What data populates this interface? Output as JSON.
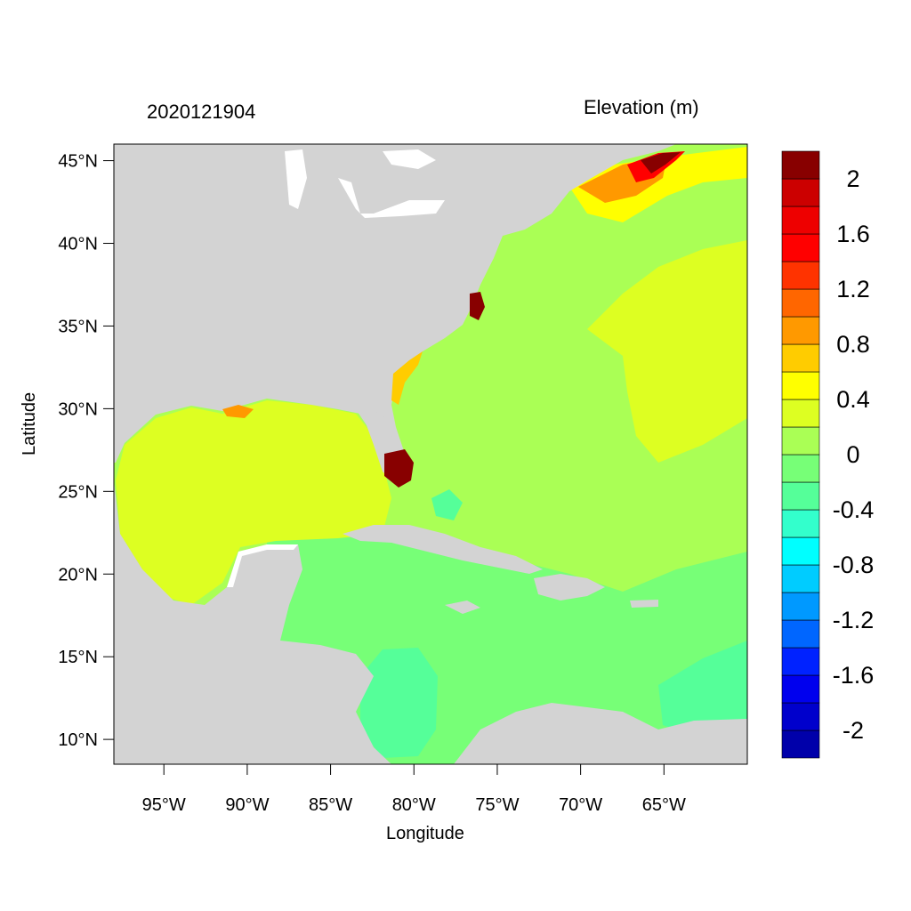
{
  "title_left": "2020121904",
  "title_right": "Elevation (m)",
  "chart_data": {
    "type": "heatmap",
    "title": "2020121904",
    "subtitle": "Elevation (m)",
    "xlabel": "Longitude",
    "ylabel": "Latitude",
    "x_ticks": [
      {
        "value": -95,
        "label": "95°W"
      },
      {
        "value": -90,
        "label": "90°W"
      },
      {
        "value": -85,
        "label": "85°W"
      },
      {
        "value": -80,
        "label": "80°W"
      },
      {
        "value": -75,
        "label": "75°W"
      },
      {
        "value": -70,
        "label": "70°W"
      },
      {
        "value": -65,
        "label": "65°W"
      }
    ],
    "y_ticks": [
      {
        "value": 45,
        "label": "45°N"
      },
      {
        "value": 40,
        "label": "40°N"
      },
      {
        "value": 35,
        "label": "35°N"
      },
      {
        "value": 30,
        "label": "30°N"
      },
      {
        "value": 25,
        "label": "25°N"
      },
      {
        "value": 20,
        "label": "20°N"
      },
      {
        "value": 15,
        "label": "15°N"
      },
      {
        "value": 10,
        "label": "10°N"
      }
    ],
    "xlim": [
      -98,
      -60
    ],
    "ylim": [
      8.5,
      46
    ],
    "colorbar": {
      "colors": [
        "#0000aa",
        "#0000cc",
        "#0000ee",
        "#0022ff",
        "#0066ff",
        "#0099ff",
        "#00ccff",
        "#00ffff",
        "#33ffcc",
        "#55ff99",
        "#77ff77",
        "#aaff55",
        "#ddff22",
        "#ffff00",
        "#ffcc00",
        "#ff9900",
        "#ff6600",
        "#ff3300",
        "#ff0000",
        "#ee0000",
        "#cc0000",
        "#880000"
      ],
      "tick_labels": [
        {
          "value": -2,
          "label": "-2"
        },
        {
          "value": -1.6,
          "label": "-1.6"
        },
        {
          "value": -1.2,
          "label": "-1.2"
        },
        {
          "value": -0.8,
          "label": "-0.8"
        },
        {
          "value": -0.4,
          "label": "-0.4"
        },
        {
          "value": 0,
          "label": "0"
        },
        {
          "value": 0.4,
          "label": "0.4"
        },
        {
          "value": 0.8,
          "label": "0.8"
        },
        {
          "value": 1.2,
          "label": "1.2"
        },
        {
          "value": 1.6,
          "label": "1.6"
        },
        {
          "value": 2,
          "label": "2"
        }
      ]
    },
    "colors": {
      "land": "#d3d3d3",
      "atlantic": "#aaff55",
      "gulf": "#ddff22",
      "caribbean": "#77ff77",
      "caribbean_low": "#55ff99",
      "surge_high": "#880000"
    }
  }
}
